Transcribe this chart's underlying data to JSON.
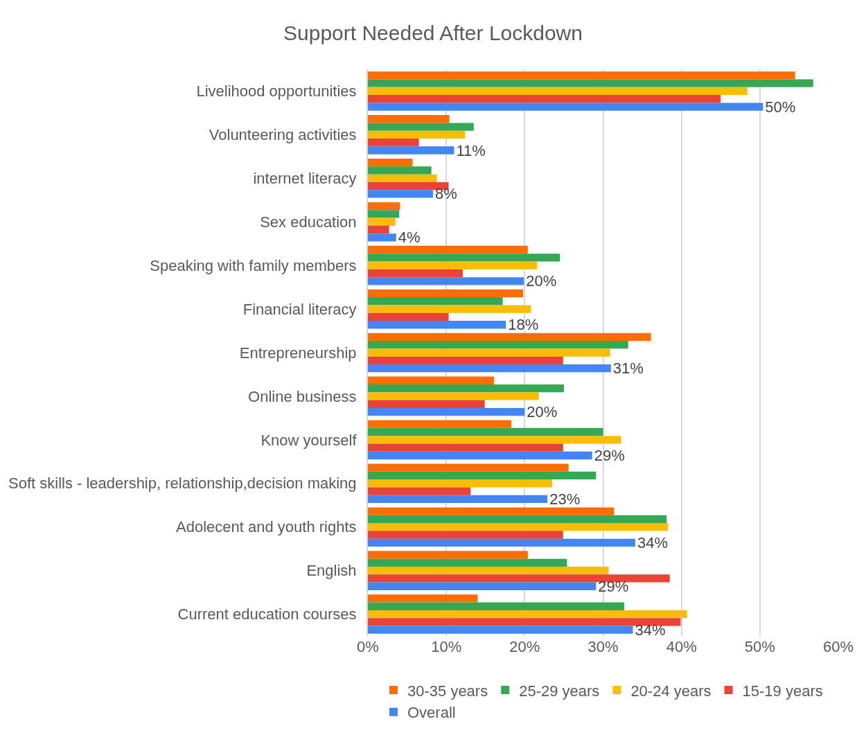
{
  "chart_data": {
    "type": "bar",
    "orientation": "horizontal",
    "title": "Support Needed After Lockdown",
    "categories": [
      "Livelihood opportunities",
      "Volunteering activities",
      "internet literacy",
      "Sex education",
      "Speaking with family members",
      "Financial literacy",
      "Entrepreneurship",
      "Online business",
      "Know yourself",
      "Soft skills - leadership, relationship,decision making",
      "Adolecent and youth rights",
      "English",
      "Current education courses"
    ],
    "series": [
      {
        "name": "30-35 years",
        "color": "#ff6d01",
        "values": [
          54.5,
          10.4,
          5.7,
          4.1,
          20.4,
          19.8,
          36.1,
          16.1,
          18.3,
          25.6,
          31.4,
          20.4,
          14.0
        ]
      },
      {
        "name": "25-29 years",
        "color": "#34a853",
        "values": [
          56.8,
          13.5,
          8.1,
          4.0,
          24.5,
          17.2,
          33.2,
          25.0,
          30.0,
          29.1,
          38.1,
          25.4,
          32.7
        ]
      },
      {
        "name": "20-24 years",
        "color": "#fbbc04",
        "values": [
          48.4,
          12.4,
          8.8,
          3.5,
          21.6,
          20.8,
          30.9,
          21.8,
          32.3,
          23.5,
          38.3,
          30.7,
          40.7
        ]
      },
      {
        "name": "15-19 years",
        "color": "#ea4335",
        "values": [
          45.0,
          6.5,
          10.3,
          2.7,
          12.1,
          10.3,
          24.9,
          14.9,
          24.9,
          13.1,
          24.9,
          38.5,
          39.9
        ]
      },
      {
        "name": "Overall",
        "color": "#4285f4",
        "values": [
          50.4,
          11.0,
          8.3,
          3.6,
          19.9,
          17.6,
          31.0,
          20.0,
          28.6,
          22.9,
          34.1,
          29.1,
          33.8
        ],
        "value_labels": [
          "50%",
          "11%",
          "8%",
          "4%",
          "20%",
          "18%",
          "31%",
          "20%",
          "29%",
          "23%",
          "34%",
          "29%",
          "34%"
        ]
      }
    ],
    "xlim": [
      0,
      60
    ],
    "xticks": [
      {
        "value": 0,
        "label": "0%"
      },
      {
        "value": 10,
        "label": "10%"
      },
      {
        "value": 20,
        "label": "20%"
      },
      {
        "value": 30,
        "label": "30%"
      },
      {
        "value": 40,
        "label": "40%"
      },
      {
        "value": 50,
        "label": "50%"
      },
      {
        "value": 60,
        "label": "60%"
      }
    ],
    "grid": "x",
    "legend": "bottom"
  }
}
